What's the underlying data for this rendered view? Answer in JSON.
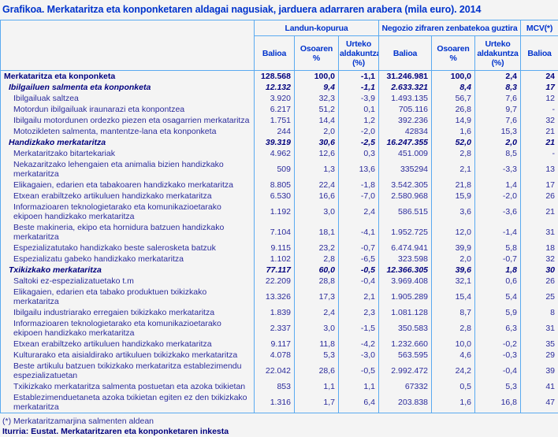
{
  "title": "Grafikoa. Merkataritza eta konponketaren aldagai nagusiak, jarduera adarraren arabera (mila euro). 2014",
  "chart_data": {
    "type": "table",
    "title": "Merkataritza eta konponketaren aldagai nagusiak, jarduera adarraren arabera (mila euro). 2014",
    "column_groups": [
      {
        "label": "Landun-kopurua",
        "span": 3
      },
      {
        "label": "Negozio zifraren zenbatekoa guztira",
        "span": 3
      },
      {
        "label": "MCV(*)",
        "span": 1
      }
    ],
    "columns": [
      "Balioa",
      "Osoaren %",
      "Urteko aldakuntza (%)",
      "Balioa",
      "Osoaren %",
      "Urteko aldakuntza (%)",
      "Balioa"
    ],
    "rows": [
      {
        "label": "Merkataritza eta konponketa",
        "style": "total",
        "values": [
          "128.568",
          "100,0",
          "-1,1",
          "31.246.981",
          "100,0",
          "2,4",
          "24"
        ]
      },
      {
        "label": "Ibilgailuen salmenta eta konponketa",
        "style": "section",
        "values": [
          "12.132",
          "9,4",
          "-1,1",
          "2.633.321",
          "8,4",
          "8,3",
          "17"
        ]
      },
      {
        "label": "Ibilgailuak saltzea",
        "style": "item",
        "values": [
          "3.920",
          "32,3",
          "-3,9",
          "1.493.135",
          "56,7",
          "7,6",
          "12"
        ]
      },
      {
        "label": "Motordun ibilgailuak iraunarazi eta konpontzea",
        "style": "item",
        "values": [
          "6.217",
          "51,2",
          "0,1",
          "705.116",
          "26,8",
          "9,7",
          "-"
        ]
      },
      {
        "label": "Ibilgailu motordunen ordezko piezen eta osagarrien merkataritza",
        "style": "item",
        "values": [
          "1.751",
          "14,4",
          "1,2",
          "392.236",
          "14,9",
          "7,6",
          "32"
        ]
      },
      {
        "label": "Motozikleten salmenta, mantentze-lana eta konponketa",
        "style": "item",
        "values": [
          "244",
          "2,0",
          "-2,0",
          "42834",
          "1,6",
          "15,3",
          "21"
        ]
      },
      {
        "label": "Handizkako merkataritza",
        "style": "section",
        "values": [
          "39.319",
          "30,6",
          "-2,5",
          "16.247.355",
          "52,0",
          "2,0",
          "21"
        ]
      },
      {
        "label": "Merkataritzako bitartekariak",
        "style": "item",
        "values": [
          "4.962",
          "12,6",
          "0,3",
          "451.009",
          "2,8",
          "8,5",
          "-"
        ]
      },
      {
        "label": "Nekazaritzako lehengaien eta animalia bizien handizkako merkataritza",
        "style": "item",
        "values": [
          "509",
          "1,3",
          "13,6",
          "335294",
          "2,1",
          "-3,3",
          "13"
        ]
      },
      {
        "label": "Elikagaien, edarien eta tabakoaren handizkako merkataritza",
        "style": "item",
        "values": [
          "8.805",
          "22,4",
          "-1,8",
          "3.542.305",
          "21,8",
          "1,4",
          "17"
        ]
      },
      {
        "label": "Etxean erabiltzeko artikuluen handizkako merkataritza",
        "style": "item",
        "values": [
          "6.530",
          "16,6",
          "-7,0",
          "2.580.968",
          "15,9",
          "-2,0",
          "26"
        ]
      },
      {
        "label": "Informazioaren teknologietarako eta komunikazioetarako ekipoen handizkako merkataritza",
        "style": "item",
        "values": [
          "1.192",
          "3,0",
          "2,4",
          "586.515",
          "3,6",
          "-3,6",
          "21"
        ]
      },
      {
        "label": "Beste makineria, ekipo eta hornidura batzuen handizkako merkataritza",
        "style": "item",
        "values": [
          "7.104",
          "18,1",
          "-4,1",
          "1.952.725",
          "12,0",
          "-1,4",
          "31"
        ]
      },
      {
        "label": "Espezializatutako handizkako beste salerosketa batzuk",
        "style": "item",
        "values": [
          "9.115",
          "23,2",
          "-0,7",
          "6.474.941",
          "39,9",
          "5,8",
          "18"
        ]
      },
      {
        "label": "Espezializatu gabeko handizkako merkataritza",
        "style": "item",
        "values": [
          "1.102",
          "2,8",
          "-6,5",
          "323.598",
          "2,0",
          "-0,7",
          "32"
        ]
      },
      {
        "label": "Txikizkako merkataritza",
        "style": "section",
        "values": [
          "77.117",
          "60,0",
          "-0,5",
          "12.366.305",
          "39,6",
          "1,8",
          "30"
        ]
      },
      {
        "label": "Saltoki ez-espezializatuetako t.m",
        "style": "item",
        "values": [
          "22.209",
          "28,8",
          "-0,4",
          "3.969.408",
          "32,1",
          "0,6",
          "26"
        ]
      },
      {
        "label": "Elikagaien, edarien eta tabako produktuen txikizkako merkataritza",
        "style": "item",
        "values": [
          "13.326",
          "17,3",
          "2,1",
          "1.905.289",
          "15,4",
          "5,4",
          "25"
        ]
      },
      {
        "label": "Ibilgailu industriarako erregaien txikizkako merkataritza",
        "style": "item",
        "values": [
          "1.839",
          "2,4",
          "2,3",
          "1.081.128",
          "8,7",
          "5,9",
          "8"
        ]
      },
      {
        "label": "Informazioaren teknologietarako eta komunikazioetarako ekipoen handizkako merkataritza",
        "style": "item",
        "values": [
          "2.337",
          "3,0",
          "-1,5",
          "350.583",
          "2,8",
          "6,3",
          "31"
        ]
      },
      {
        "label": "Etxean erabiltzeko artikuluen handizkako merkataritza",
        "style": "item",
        "values": [
          "9.117",
          "11,8",
          "-4,2",
          "1.232.660",
          "10,0",
          "-0,2",
          "35"
        ]
      },
      {
        "label": "Kulturarako eta aisialdirako artikuluen txikizkako merkataritza",
        "style": "item",
        "values": [
          "4.078",
          "5,3",
          "-3,0",
          "563.595",
          "4,6",
          "-0,3",
          "29"
        ]
      },
      {
        "label": "Beste artikulu batzuen txikizkako merkataritza establezimendu espezializatuetan",
        "style": "item",
        "values": [
          "22.042",
          "28,6",
          "-0,5",
          "2.992.472",
          "24,2",
          "-0,4",
          "39"
        ]
      },
      {
        "label": "Txikizkako merkataritza salmenta postuetan eta azoka txikietan",
        "style": "item",
        "values": [
          "853",
          "1,1",
          "1,1",
          "67332",
          "0,5",
          "5,3",
          "41"
        ]
      },
      {
        "label": "Establezimenduetaneta azoka txikietan egiten ez den txikizkako merkataritza",
        "style": "item",
        "values": [
          "1.316",
          "1,7",
          "6,4",
          "203.838",
          "1,6",
          "16,8",
          "47"
        ]
      }
    ]
  },
  "footnote": "(*) Merkataritzamarjina salmenten aldean",
  "source": "Iturria: Eustat. Merkataritzaren eta konponketaren inkesta",
  "colors": {
    "accent_blue": "#0033cc",
    "border_blue": "#5aaaf0",
    "text_navy": "#2b2b9b",
    "text_navy_strong": "#00007d",
    "background": "#f4f4f4"
  }
}
